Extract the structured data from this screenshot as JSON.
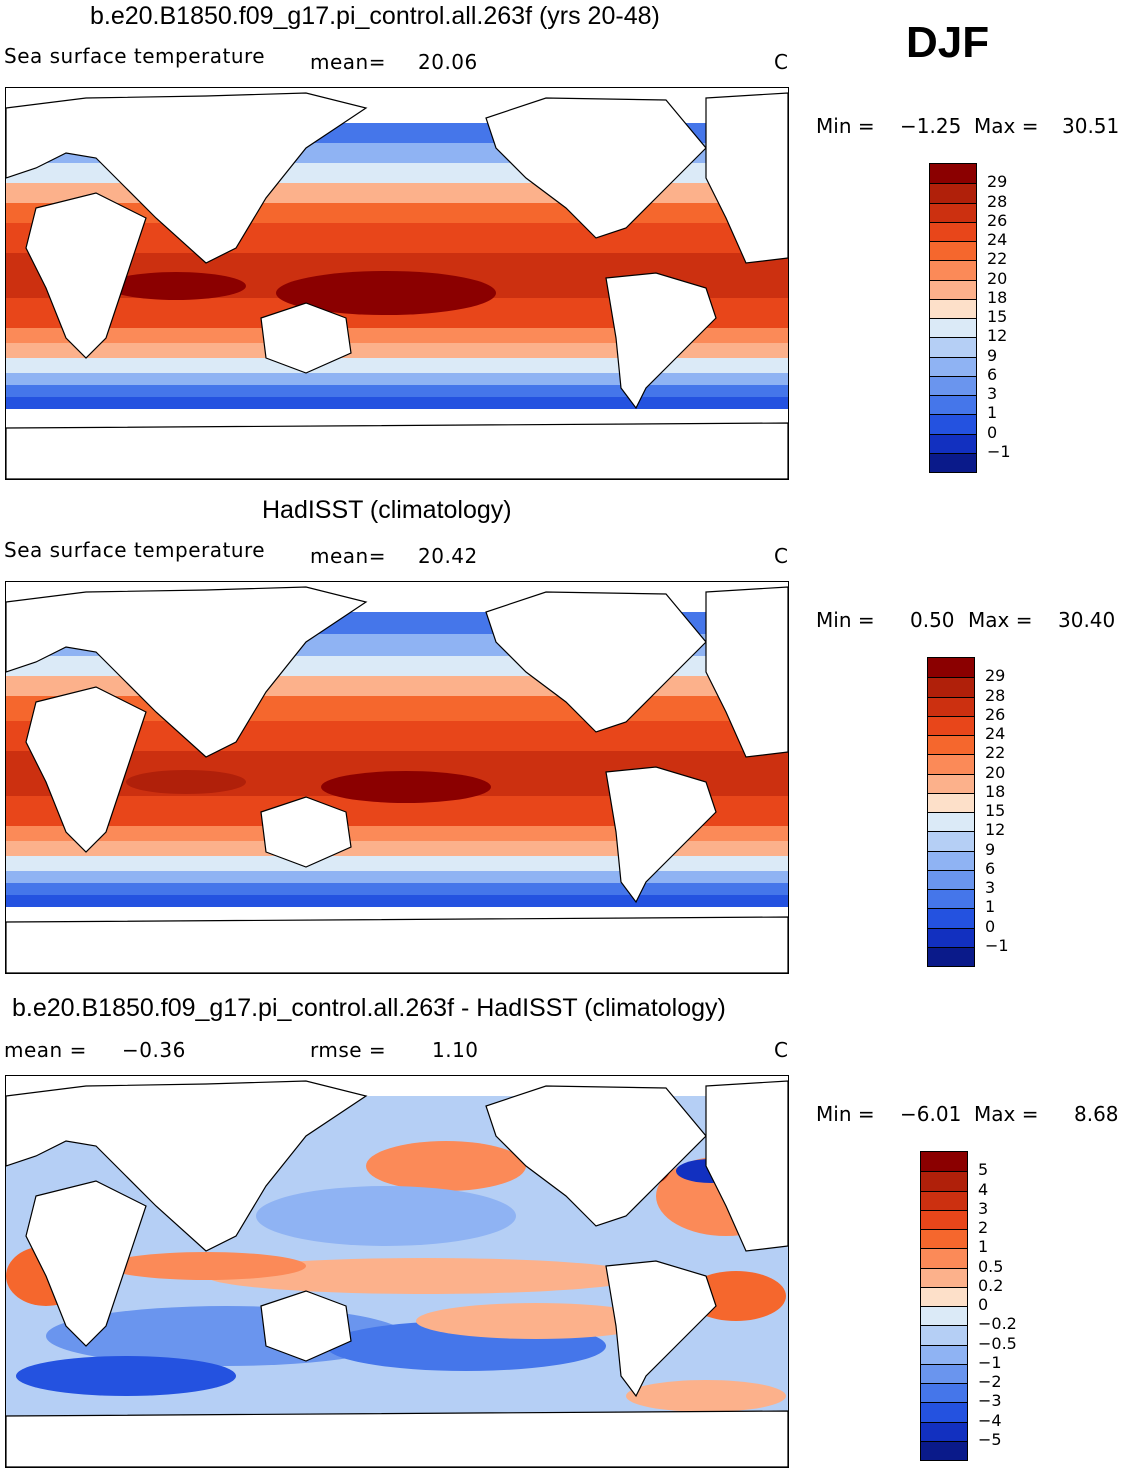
{
  "season": "DJF",
  "panels": [
    {
      "title": "b.e20.B1850.f09_g17.pi_control.all.263f (yrs 20-48)",
      "left_label": "Sea surface temperature",
      "mean_label": "mean=",
      "mean_value": "20.06",
      "units": "C",
      "min_label": "Min =",
      "min_value": "−1.25",
      "max_label": "Max =",
      "max_value": "30.51",
      "legend": [
        "29",
        "28",
        "26",
        "24",
        "22",
        "20",
        "18",
        "15",
        "12",
        "9",
        "6",
        "3",
        "1",
        "0",
        "−1"
      ],
      "colors": [
        "#8b0000",
        "#b0200a",
        "#cc3010",
        "#e8461a",
        "#f5672d",
        "#fb8a58",
        "#fcb18b",
        "#fde0c9",
        "#dbeaf7",
        "#b5cff5",
        "#8fb3f3",
        "#6a95ee",
        "#4576ea",
        "#2452e0",
        "#1230c0",
        "#0a1a8a"
      ]
    },
    {
      "title": "HadISST (climatology)",
      "left_label": "Sea surface temperature",
      "mean_label": "mean=",
      "mean_value": "20.42",
      "units": "C",
      "min_label": "Min =",
      "min_value": "0.50",
      "max_label": "Max =",
      "max_value": "30.40",
      "legend": [
        "29",
        "28",
        "26",
        "24",
        "22",
        "20",
        "18",
        "15",
        "12",
        "9",
        "6",
        "3",
        "1",
        "0",
        "−1"
      ],
      "colors": [
        "#8b0000",
        "#b0200a",
        "#cc3010",
        "#e8461a",
        "#f5672d",
        "#fb8a58",
        "#fcb18b",
        "#fde0c9",
        "#dbeaf7",
        "#b5cff5",
        "#8fb3f3",
        "#6a95ee",
        "#4576ea",
        "#2452e0",
        "#1230c0",
        "#0a1a8a"
      ]
    },
    {
      "title": "b.e20.B1850.f09_g17.pi_control.all.263f - HadISST (climatology)",
      "left_label": "mean =",
      "mean_label": "−0.36",
      "rmse_label": "rmse =",
      "rmse_value": "1.10",
      "units": "C",
      "min_label": "Min =",
      "min_value": "−6.01",
      "max_label": "Max =",
      "max_value": "8.68",
      "legend": [
        "5",
        "4",
        "3",
        "2",
        "1",
        "0.5",
        "0.2",
        "0",
        "−0.2",
        "−0.5",
        "−1",
        "−2",
        "−3",
        "−4",
        "−5"
      ],
      "colors": [
        "#8b0000",
        "#b0200a",
        "#cc3010",
        "#e8461a",
        "#f5672d",
        "#fb8a58",
        "#fcb18b",
        "#fde0c9",
        "#dbeaf7",
        "#b5cff5",
        "#8fb3f3",
        "#6a95ee",
        "#4576ea",
        "#2452e0",
        "#1230c0",
        "#0a1a8a"
      ]
    }
  ]
}
